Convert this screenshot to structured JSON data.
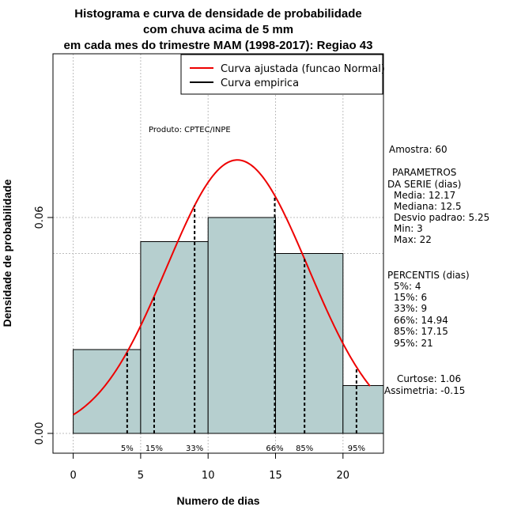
{
  "chart_data": {
    "type": "bar",
    "title": [
      "Histograma e curva de densidade de probabilidade",
      "com chuva acima de 5 mm",
      "em cada mes do trimestre MAM (1998-2017): Regiao 43"
    ],
    "xlabel": "Numero de dias",
    "ylabel": "Densidade de probabilidade",
    "xlim": [
      -1.5,
      23
    ],
    "ylim": [
      -0.0055,
      0.1055
    ],
    "x_ticks": [
      0,
      5,
      10,
      15,
      20
    ],
    "y_ticks": [
      0.0,
      0.06
    ],
    "y_tick_labels": [
      "0.00",
      "0.06"
    ],
    "grid": true,
    "bins": [
      {
        "from": 0,
        "to": 5,
        "density": 0.0233
      },
      {
        "from": 5,
        "to": 10,
        "density": 0.0533
      },
      {
        "from": 10,
        "to": 15,
        "density": 0.06
      },
      {
        "from": 15,
        "to": 20,
        "density": 0.05
      },
      {
        "from": 20,
        "to": 23,
        "density": 0.0133
      }
    ],
    "bar_color": "#b6cfcf",
    "curve": {
      "name": "Curva ajustada (funcao Normal)",
      "mean": 12.17,
      "sd": 5.25,
      "x_range": [
        0,
        22
      ],
      "color": "#ee0000"
    },
    "percentile_lines": [
      {
        "label": "5%",
        "x": 4
      },
      {
        "label": "15%",
        "x": 6
      },
      {
        "label": "33%",
        "x": 9
      },
      {
        "label": "66%",
        "x": 14.94
      },
      {
        "label": "85%",
        "x": 17.15
      },
      {
        "label": "95%",
        "x": 21
      }
    ],
    "legend": {
      "position": "top-right",
      "entries": [
        {
          "label": "Curva ajustada (funcao Normal)",
          "color": "#ee0000"
        },
        {
          "label": "Curva empirica",
          "color": "#000000"
        }
      ]
    },
    "annotations": {
      "produto": "Produto: CPTEC/INPE",
      "amostra": "Amostra: 60",
      "parametros_title": [
        "PARAMETROS",
        "DA SERIE (dias)"
      ],
      "parametros": [
        "Media: 12.17",
        "Mediana: 12.5",
        "Desvio padrao: 5.25",
        "Min: 3",
        "Max: 22"
      ],
      "percentis_title": "PERCENTIS (dias)",
      "percentis": [
        "5%: 4",
        "15%: 6",
        "33%: 9",
        "66%: 14.94",
        "85%: 17.15",
        "95%: 21"
      ],
      "curtose": "Curtose: 1.06",
      "assimetria": "Assimetria: -0.15"
    }
  }
}
